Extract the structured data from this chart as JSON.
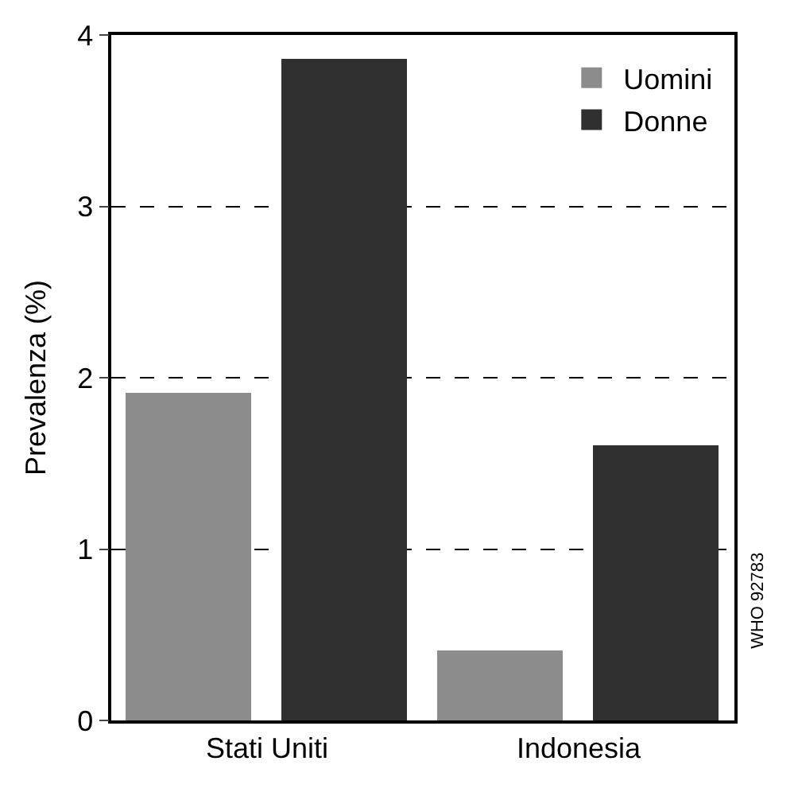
{
  "chart_data": {
    "type": "bar",
    "ylabel": "Prevalenza (%)",
    "categories": [
      "Stati Uniti",
      "Indonesia"
    ],
    "series": [
      {
        "name": "Uomini",
        "color": "#8c8c8c",
        "values": [
          1.9,
          0.4
        ]
      },
      {
        "name": "Donne",
        "color": "#303030",
        "values": [
          3.85,
          1.6
        ]
      }
    ],
    "ylim": [
      0,
      4
    ],
    "yticks": [
      0,
      1,
      2,
      3,
      4
    ],
    "grid": "y",
    "line_style": "dashed",
    "legend": "top right",
    "annotations": [
      "WHO 92783"
    ]
  }
}
